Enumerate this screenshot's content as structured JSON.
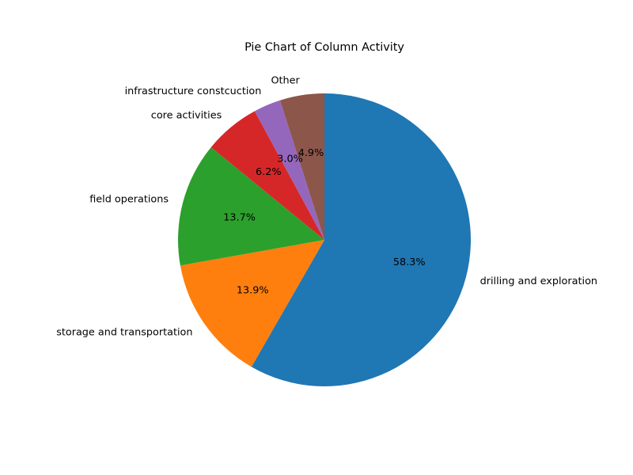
{
  "chart_data": {
    "type": "pie",
    "title": "Pie Chart of Column Activity",
    "start_angle_deg": 90,
    "direction": "clockwise",
    "legend": "none",
    "slices": [
      {
        "label": "drilling and exploration",
        "value": 58.3,
        "pct_label": "58.3%",
        "color": "#1f77b4"
      },
      {
        "label": "storage and transportation",
        "value": 13.9,
        "pct_label": "13.9%",
        "color": "#ff7f0e"
      },
      {
        "label": "field operations",
        "value": 13.7,
        "pct_label": "13.7%",
        "color": "#2ca02c"
      },
      {
        "label": "core activities",
        "value": 6.2,
        "pct_label": "6.2%",
        "color": "#d62728"
      },
      {
        "label": "infrastructure constcuction",
        "value": 3.0,
        "pct_label": "3.0%",
        "color": "#9467bd"
      },
      {
        "label": "Other",
        "value": 4.9,
        "pct_label": "4.9%",
        "color": "#8c564b"
      }
    ]
  }
}
